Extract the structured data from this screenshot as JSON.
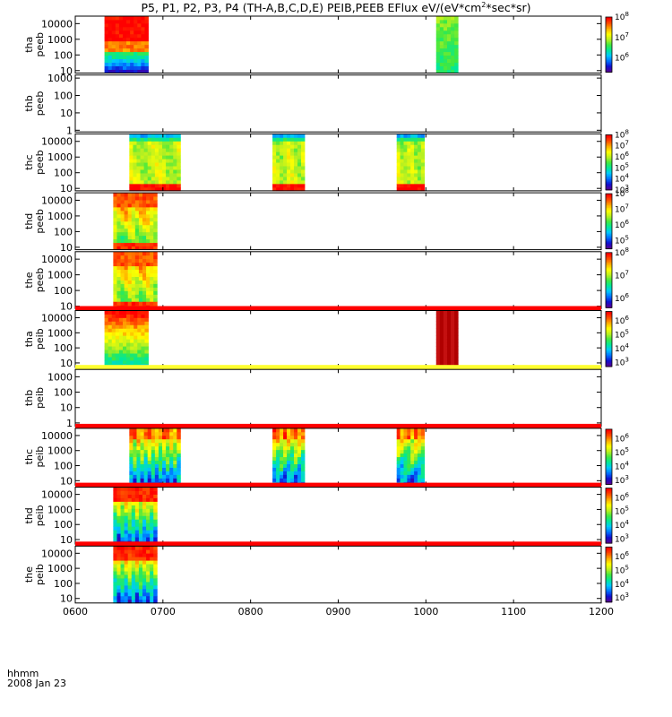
{
  "title": {
    "main": "P5, P1, P2, P3, P4 (TH-A,B,C,D,E) PEIB,PEEB EFlux eV/(eV*cm",
    "sup": "2",
    "rest": "*sec*sr)"
  },
  "footer": {
    "axis_label": "hhmm",
    "date": "2008 Jan 23"
  },
  "colors": {
    "flux_scale": [
      "#5a0090",
      "#1010d0",
      "#0070ff",
      "#00c8ff",
      "#00e89a",
      "#40e840",
      "#b8f020",
      "#ffff00",
      "#ffb000",
      "#ff5000",
      "#ff0000"
    ],
    "red_bar": "#ff0000",
    "yellow_bar": "#ffff30",
    "background": "#ffffff"
  },
  "chart_data": {
    "type": "heatmap",
    "x_axis": {
      "unit": "hhmm",
      "range": [
        "0600",
        "1200"
      ],
      "tick_labels": [
        "0600",
        "0700",
        "0800",
        "0900",
        "1000",
        "1100",
        "1200"
      ]
    },
    "panels": [
      {
        "label_line1": "tha",
        "label_line2": "peeb",
        "y_log": true,
        "y_range": [
          7,
          30000
        ],
        "y_ticks": [
          {
            "v": 10,
            "t": "10"
          },
          {
            "v": 100,
            "t": "100"
          },
          {
            "v": 1000,
            "t": "1000"
          },
          {
            "v": 10000,
            "t": "10000"
          }
        ],
        "colorbar": {
          "c_range": [
            200000,
            100000000
          ],
          "ticks": [
            {
              "v": 1000000,
              "e": "6"
            },
            {
              "v": 10000000,
              "e": "7"
            },
            {
              "v": 100000000,
              "e": "8"
            }
          ]
        },
        "blocks": [
          {
            "t0": "06:20",
            "t1": "06:50",
            "pattern": "eeb_strong"
          },
          {
            "t0": "10:07",
            "t1": "10:22",
            "pattern": "green"
          }
        ]
      },
      {
        "label_line1": "thb",
        "label_line2": "peeb",
        "y_log": true,
        "y_range": [
          0.8,
          1500
        ],
        "y_ticks": [
          {
            "v": 1,
            "t": "1"
          },
          {
            "v": 10,
            "t": "10"
          },
          {
            "v": 100,
            "t": "100"
          },
          {
            "v": 1000,
            "t": "1000"
          }
        ],
        "colorbar": null,
        "blocks": []
      },
      {
        "label_line1": "thc",
        "label_line2": "peeb",
        "y_log": true,
        "y_range": [
          7,
          30000
        ],
        "y_ticks": [
          {
            "v": 10,
            "t": "10"
          },
          {
            "v": 100,
            "t": "100"
          },
          {
            "v": 1000,
            "t": "1000"
          },
          {
            "v": 10000,
            "t": "10000"
          }
        ],
        "colorbar": {
          "c_range": [
            1000,
            100000000
          ],
          "ticks": [
            {
              "v": 1000,
              "e": "3"
            },
            {
              "v": 10000,
              "e": "4"
            },
            {
              "v": 100000,
              "e": "5"
            },
            {
              "v": 1000000,
              "e": "6"
            },
            {
              "v": 10000000,
              "e": "7"
            },
            {
              "v": 100000000,
              "e": "8"
            }
          ]
        },
        "blocks": [
          {
            "t0": "06:37",
            "t1": "07:12",
            "pattern": "eeb_c"
          },
          {
            "t0": "08:15",
            "t1": "08:37",
            "pattern": "eeb_c"
          },
          {
            "t0": "09:40",
            "t1": "09:59",
            "pattern": "eeb_c"
          }
        ]
      },
      {
        "label_line1": "thd",
        "label_line2": "peeb",
        "y_log": true,
        "y_range": [
          7,
          30000
        ],
        "y_ticks": [
          {
            "v": 10,
            "t": "10"
          },
          {
            "v": 100,
            "t": "100"
          },
          {
            "v": 1000,
            "t": "1000"
          },
          {
            "v": 10000,
            "t": "10000"
          }
        ],
        "colorbar": {
          "c_range": [
            30000,
            100000000
          ],
          "ticks": [
            {
              "v": 100000,
              "e": "5"
            },
            {
              "v": 1000000,
              "e": "6"
            },
            {
              "v": 10000000,
              "e": "7"
            },
            {
              "v": 100000000,
              "e": "8"
            }
          ]
        },
        "blocks": [
          {
            "t0": "06:26",
            "t1": "06:56",
            "pattern": "eeb_de"
          }
        ]
      },
      {
        "label_line1": "the",
        "label_line2": "peeb",
        "y_log": true,
        "y_range": [
          7,
          30000
        ],
        "y_ticks": [
          {
            "v": 10,
            "t": "10"
          },
          {
            "v": 100,
            "t": "100"
          },
          {
            "v": 1000,
            "t": "1000"
          },
          {
            "v": 10000,
            "t": "10000"
          }
        ],
        "colorbar": {
          "c_range": [
            400000,
            100000000
          ],
          "ticks": [
            {
              "v": 1000000,
              "e": "6"
            },
            {
              "v": 10000000,
              "e": "7"
            },
            {
              "v": 100000000,
              "e": "8"
            }
          ]
        },
        "blocks": [
          {
            "t0": "06:26",
            "t1": "06:56",
            "pattern": "eeb_de"
          }
        ]
      },
      {
        "label_line1": "tha",
        "label_line2": "peib",
        "y_log": true,
        "y_range": [
          5,
          30000
        ],
        "y_ticks": [
          {
            "v": 10,
            "t": "10"
          },
          {
            "v": 100,
            "t": "100"
          },
          {
            "v": 1000,
            "t": "1000"
          },
          {
            "v": 10000,
            "t": "10000"
          }
        ],
        "colorbar": {
          "c_range": [
            500,
            5000000
          ],
          "ticks": [
            {
              "v": 1000,
              "e": "3"
            },
            {
              "v": 10000,
              "e": "4"
            },
            {
              "v": 100000,
              "e": "5"
            },
            {
              "v": 1000000,
              "e": "6"
            }
          ]
        },
        "top_bar": "red",
        "blocks": [
          {
            "t0": "06:20",
            "t1": "06:50",
            "pattern": "eib_a"
          },
          {
            "t0": "10:07",
            "t1": "10:22",
            "pattern": "darkred"
          }
        ]
      },
      {
        "label_line1": "thb",
        "label_line2": "peib",
        "y_log": true,
        "y_range": [
          0.6,
          3000
        ],
        "y_ticks": [
          {
            "v": 1,
            "t": "1"
          },
          {
            "v": 10,
            "t": "10"
          },
          {
            "v": 100,
            "t": "100"
          },
          {
            "v": 1000,
            "t": "1000"
          }
        ],
        "colorbar": null,
        "top_bar": "yellow",
        "blocks": []
      },
      {
        "label_line1": "thc",
        "label_line2": "peib",
        "y_log": true,
        "y_range": [
          5,
          30000
        ],
        "y_ticks": [
          {
            "v": 10,
            "t": "10"
          },
          {
            "v": 100,
            "t": "100"
          },
          {
            "v": 1000,
            "t": "1000"
          },
          {
            "v": 10000,
            "t": "10000"
          }
        ],
        "colorbar": {
          "c_range": [
            500,
            5000000
          ],
          "ticks": [
            {
              "v": 1000,
              "e": "3"
            },
            {
              "v": 10000,
              "e": "4"
            },
            {
              "v": 100000,
              "e": "5"
            },
            {
              "v": 1000000,
              "e": "6"
            }
          ]
        },
        "top_bar": "red",
        "blocks": [
          {
            "t0": "06:37",
            "t1": "07:12",
            "pattern": "eib_c"
          },
          {
            "t0": "08:15",
            "t1": "08:37",
            "pattern": "eib_c"
          },
          {
            "t0": "09:40",
            "t1": "09:59",
            "pattern": "eib_c"
          }
        ]
      },
      {
        "label_line1": "thd",
        "label_line2": "peib",
        "y_log": true,
        "y_range": [
          5,
          30000
        ],
        "y_ticks": [
          {
            "v": 10,
            "t": "10"
          },
          {
            "v": 100,
            "t": "100"
          },
          {
            "v": 1000,
            "t": "1000"
          },
          {
            "v": 10000,
            "t": "10000"
          }
        ],
        "colorbar": {
          "c_range": [
            500,
            5000000
          ],
          "ticks": [
            {
              "v": 1000,
              "e": "3"
            },
            {
              "v": 10000,
              "e": "4"
            },
            {
              "v": 100000,
              "e": "5"
            },
            {
              "v": 1000000,
              "e": "6"
            }
          ]
        },
        "top_bar": "red",
        "blocks": [
          {
            "t0": "06:26",
            "t1": "06:56",
            "pattern": "eib_de"
          }
        ]
      },
      {
        "label_line1": "the",
        "label_line2": "peib",
        "y_log": true,
        "y_range": [
          5,
          30000
        ],
        "y_ticks": [
          {
            "v": 10,
            "t": "10"
          },
          {
            "v": 100,
            "t": "100"
          },
          {
            "v": 1000,
            "t": "1000"
          },
          {
            "v": 10000,
            "t": "10000"
          }
        ],
        "colorbar": {
          "c_range": [
            500,
            5000000
          ],
          "ticks": [
            {
              "v": 1000,
              "e": "3"
            },
            {
              "v": 10000,
              "e": "4"
            },
            {
              "v": 100000,
              "e": "5"
            },
            {
              "v": 1000000,
              "e": "6"
            }
          ]
        },
        "top_bar": "red",
        "blocks": [
          {
            "t0": "06:26",
            "t1": "06:56",
            "pattern": "eib_de"
          }
        ]
      }
    ]
  }
}
